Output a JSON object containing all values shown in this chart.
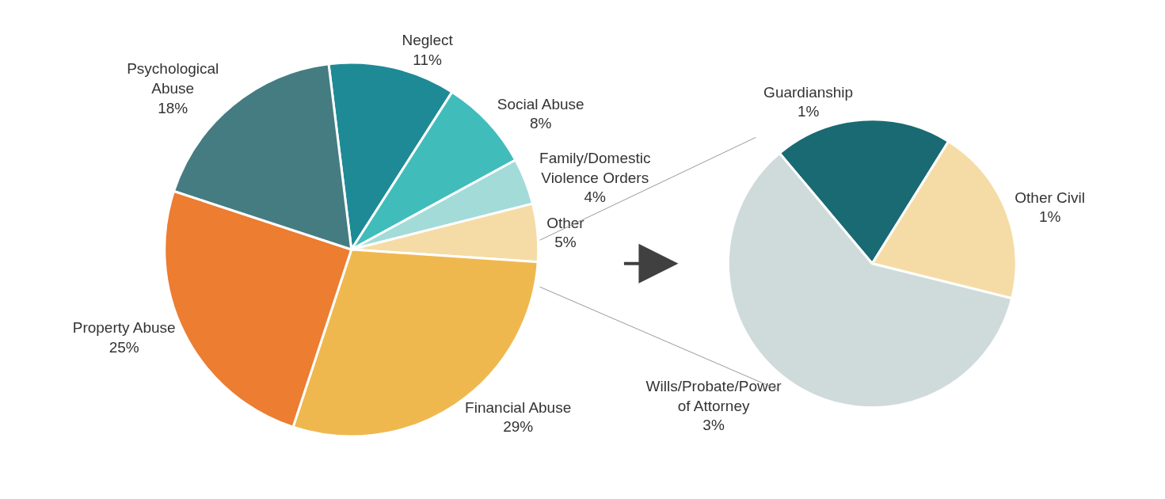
{
  "chart_data": [
    {
      "type": "pie",
      "categories": [
        "Neglect",
        "Social Abuse",
        "Family/Domestic Violence Orders",
        "Other",
        "Financial Abuse",
        "Property Abuse",
        "Psychological Abuse"
      ],
      "values": [
        11,
        8,
        4,
        5,
        29,
        25,
        18
      ],
      "value_labels": [
        "11%",
        "8%",
        "4%",
        "5%",
        "29%",
        "25%",
        "18%"
      ],
      "colors": [
        "#1e8a96",
        "#40bdbb",
        "#a3dbd9",
        "#f5dca6",
        "#efb84f",
        "#ec7d31",
        "#447c82"
      ],
      "legend": false
    },
    {
      "type": "pie",
      "categories": [
        "Guardianship",
        "Other Civil",
        "Wills/Probate/Power of Attorney"
      ],
      "values": [
        1,
        1,
        3
      ],
      "value_labels": [
        "1%",
        "1%",
        "3%"
      ],
      "colors": [
        "#196a73",
        "#f5dca6",
        "#cfdbdb"
      ],
      "legend": false
    }
  ]
}
